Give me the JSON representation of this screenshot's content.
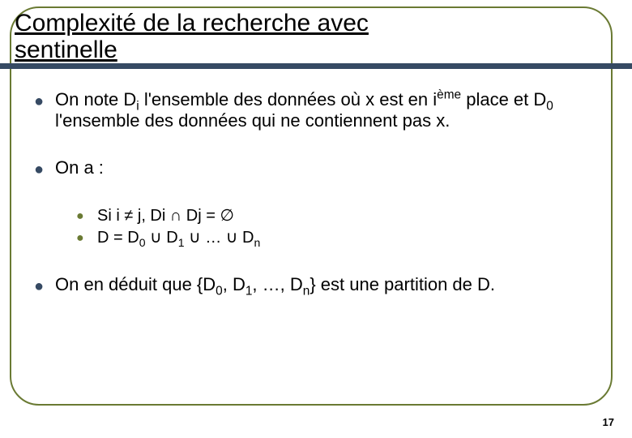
{
  "slide": {
    "title": "Complexité de la recherche avec\nsentinelle",
    "page_number": "17",
    "colors": {
      "frame_border": "#6a7a33",
      "title_bar": "#364a63",
      "bullet_lvl1": "#364a63",
      "bullet_lvl2": "#6a7a33",
      "text": "#000000",
      "background": "#ffffff"
    },
    "typography": {
      "title_fontsize": 30,
      "body_fontsize": 22,
      "sub_body_fontsize": 20,
      "pagenum_fontsize": 13,
      "font_family": "Arial"
    },
    "bullets": [
      {
        "level": 1,
        "html": "On note D<sub>i</sub> l'ensemble des données où x est en i<sup>ème</sup> place et D<sub>0</sub> l'ensemble des données qui ne contiennent pas x."
      },
      {
        "level": 1,
        "html": "On a :"
      },
      {
        "level": 2,
        "html": "Si i ≠ j, Di ∩ Dj = ∅"
      },
      {
        "level": 2,
        "html": "D = D<sub>0</sub> ∪ D<sub>1</sub> ∪ … ∪ D<sub>n</sub>"
      },
      {
        "level": 1,
        "html": "On en déduit que {D<sub>0</sub>, D<sub>1</sub>, …, D<sub>n</sub>} est une partition de D."
      }
    ]
  }
}
